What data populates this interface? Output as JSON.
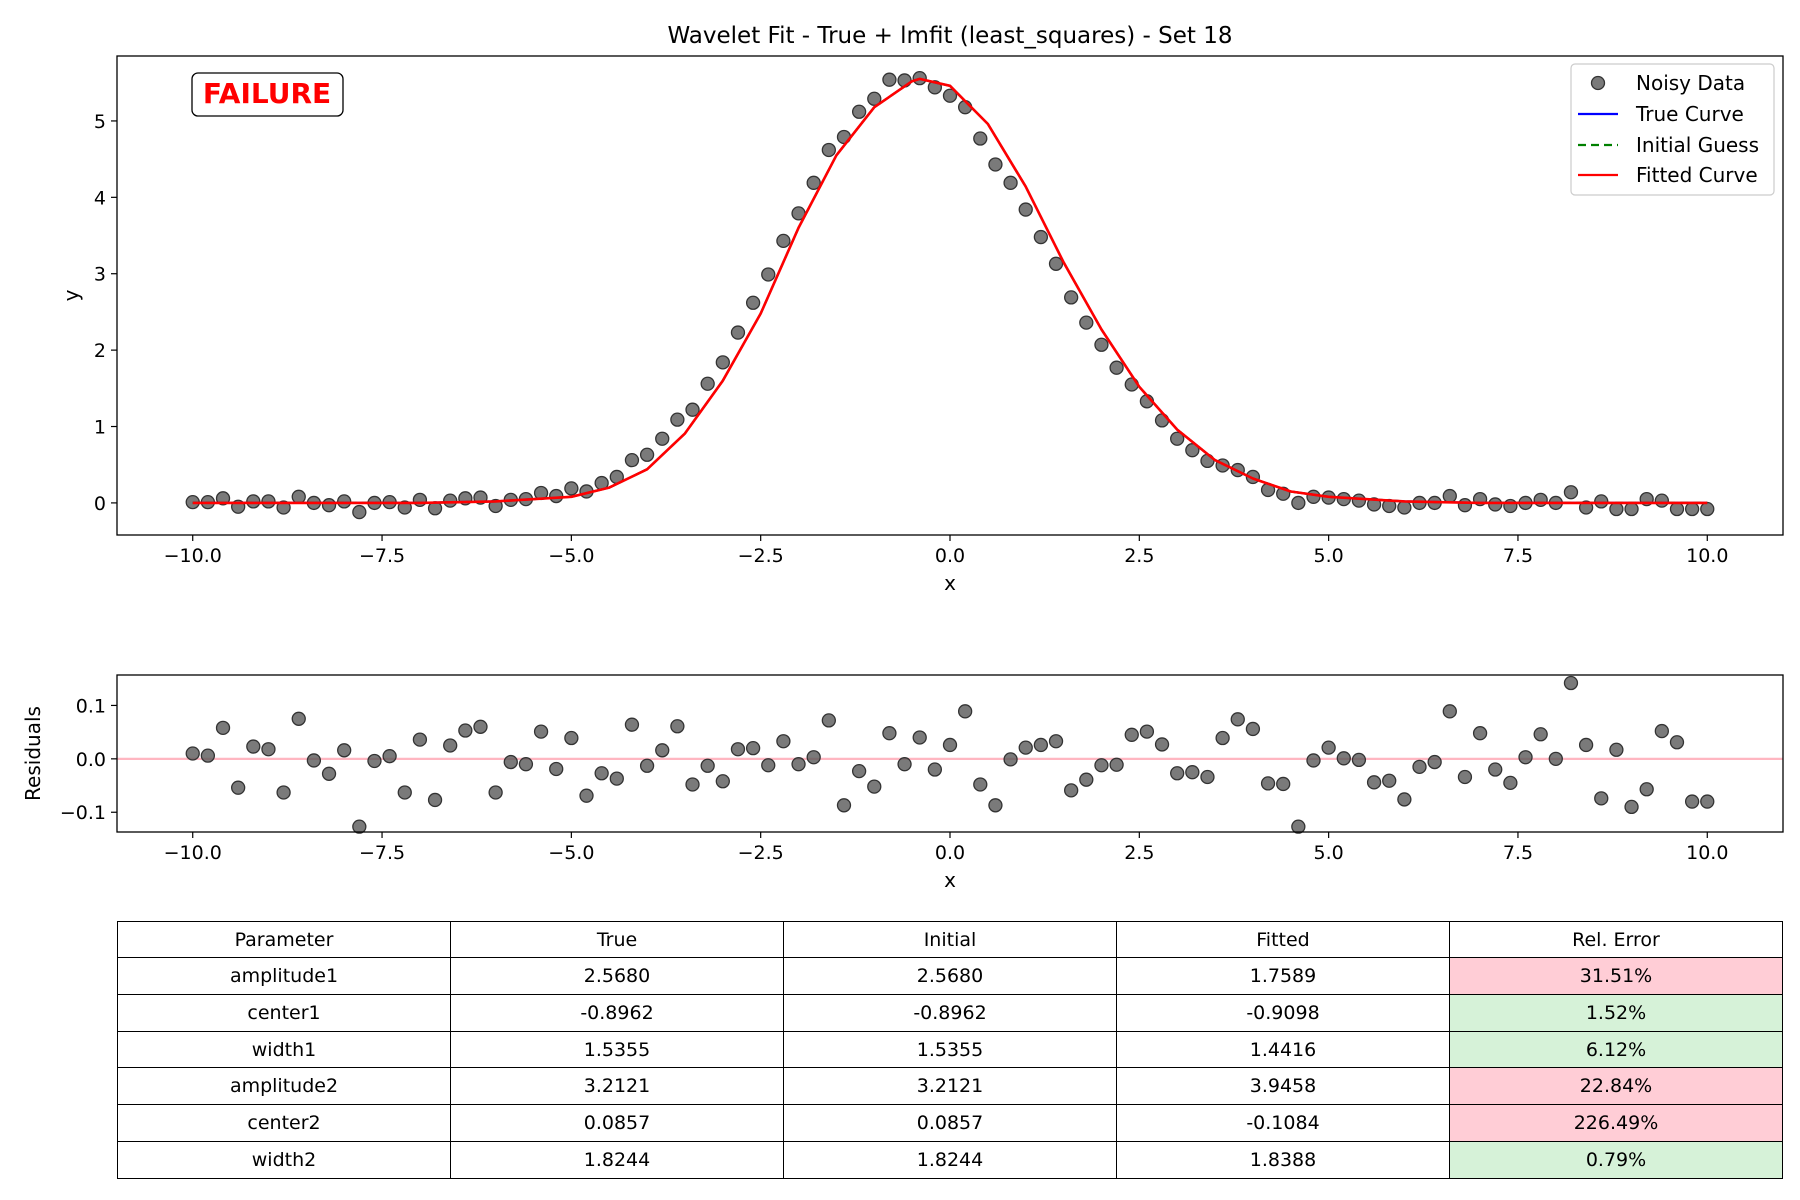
{
  "chart_data": [
    {
      "type": "scatter",
      "title": "Wavelet Fit - True + lmfit (least_squares) - Set 18",
      "xlabel": "x",
      "ylabel": "y",
      "xlim": [
        -11.0,
        11.0
      ],
      "ylim": [
        -0.42,
        5.85
      ],
      "xticks": [
        -10.0,
        -7.5,
        -5.0,
        -2.5,
        0.0,
        2.5,
        5.0,
        7.5,
        10.0
      ],
      "xtick_labels": [
        "−10.0",
        "−7.5",
        "−5.0",
        "−2.5",
        "0.0",
        "2.5",
        "5.0",
        "7.5",
        "10.0"
      ],
      "yticks": [
        0,
        1,
        2,
        3,
        4,
        5
      ],
      "ytick_labels": [
        "0",
        "1",
        "2",
        "3",
        "4",
        "5"
      ],
      "grid": false,
      "legend_placement": "top-right",
      "legend": [
        "Noisy Data",
        "True Curve",
        "Initial Guess",
        "Fitted Curve"
      ],
      "annotation": "FAILURE",
      "colors": {
        "noisy": "#555555",
        "true": "#0000ff",
        "initial": "#008000",
        "fitted": "#ff0000",
        "failure": "#ff0000"
      },
      "series": [
        {
          "name": "Noisy Data",
          "style": "markers",
          "x": [
            -10.0,
            -9.8,
            -9.6,
            -9.4,
            -9.2,
            -9.0,
            -8.8,
            -8.6,
            -8.4,
            -8.2,
            -8.0,
            -7.8,
            -7.6,
            -7.4,
            -7.2,
            -7.0,
            -6.8,
            -6.6,
            -6.4,
            -6.2,
            -6.0,
            -5.8,
            -5.6,
            -5.4,
            -5.2,
            -5.0,
            -4.8,
            -4.6,
            -4.4,
            -4.2,
            -4.0,
            -3.8,
            -3.6,
            -3.4,
            -3.2,
            -3.0,
            -2.8,
            -2.6,
            -2.4,
            -2.2,
            -2.0,
            -1.8,
            -1.6,
            -1.4,
            -1.2,
            -1.0,
            -0.8,
            -0.6,
            -0.4,
            -0.2,
            0.0,
            0.2,
            0.4,
            0.6,
            0.8,
            1.0,
            1.2,
            1.4,
            1.6,
            1.8,
            2.0,
            2.2,
            2.4,
            2.6,
            2.8,
            3.0,
            3.2,
            3.4,
            3.6,
            3.8,
            4.0,
            4.2,
            4.4,
            4.6,
            4.8,
            5.0,
            5.2,
            5.4,
            5.6,
            5.8,
            6.0,
            6.2,
            6.4,
            6.6,
            6.8,
            7.0,
            7.2,
            7.4,
            7.6,
            7.8,
            8.0,
            8.2,
            8.4,
            8.6,
            8.8,
            9.0,
            9.2,
            9.4,
            9.6,
            9.8,
            10.0
          ],
          "y": [
            0.01,
            0.01,
            0.06,
            -0.05,
            0.02,
            0.02,
            -0.06,
            0.08,
            0.0,
            -0.03,
            0.02,
            -0.12,
            0.0,
            0.01,
            -0.06,
            0.04,
            -0.07,
            0.03,
            0.06,
            0.07,
            -0.04,
            0.04,
            0.05,
            0.13,
            0.09,
            0.19,
            0.15,
            0.26,
            0.34,
            0.56,
            0.63,
            0.84,
            1.09,
            1.22,
            1.56,
            1.84,
            2.23,
            2.62,
            2.99,
            3.43,
            3.79,
            4.19,
            4.62,
            4.79,
            5.12,
            5.29,
            5.54,
            5.53,
            5.56,
            5.44,
            5.33,
            5.18,
            4.77,
            4.43,
            4.19,
            3.84,
            3.48,
            3.13,
            2.69,
            2.36,
            2.07,
            1.77,
            1.55,
            1.33,
            1.08,
            0.84,
            0.69,
            0.55,
            0.49,
            0.43,
            0.34,
            0.17,
            0.12,
            0.0,
            0.08,
            0.07,
            0.05,
            0.03,
            -0.02,
            -0.04,
            -0.06,
            0.0,
            0.0,
            0.09,
            -0.03,
            0.05,
            -0.02,
            -0.04,
            0.0,
            0.04,
            0.0,
            0.14,
            -0.06,
            0.02,
            -0.08,
            -0.08,
            0.05,
            0.03,
            -0.08,
            -0.08,
            -0.08
          ]
        },
        {
          "name": "True Curve",
          "style": "line",
          "x": [
            -10.0,
            -9.0,
            -8.0,
            -7.0,
            -6.0,
            -5.0,
            -4.5,
            -4.0,
            -3.5,
            -3.0,
            -2.5,
            -2.0,
            -1.5,
            -1.0,
            -0.5,
            -0.4,
            0.0,
            0.5,
            1.0,
            1.5,
            2.0,
            2.5,
            3.0,
            3.5,
            4.0,
            4.5,
            5.0,
            6.0,
            7.0,
            8.0,
            9.0,
            10.0
          ],
          "y": [
            0.0,
            0.0,
            0.0,
            0.0,
            0.02,
            0.08,
            0.2,
            0.44,
            0.91,
            1.6,
            2.48,
            3.6,
            4.55,
            5.18,
            5.52,
            5.55,
            5.46,
            4.96,
            4.14,
            3.15,
            2.27,
            1.52,
            0.96,
            0.56,
            0.32,
            0.15,
            0.08,
            0.02,
            0.0,
            0.0,
            0.0,
            0.0
          ]
        },
        {
          "name": "Initial Guess",
          "style": "dashed",
          "x": [
            -10.0,
            -9.0,
            -8.0,
            -7.0,
            -6.0,
            -5.0,
            -4.5,
            -4.0,
            -3.5,
            -3.0,
            -2.5,
            -2.0,
            -1.5,
            -1.0,
            -0.5,
            -0.4,
            0.0,
            0.5,
            1.0,
            1.5,
            2.0,
            2.5,
            3.0,
            3.5,
            4.0,
            4.5,
            5.0,
            6.0,
            7.0,
            8.0,
            9.0,
            10.0
          ],
          "y": [
            0.0,
            0.0,
            0.0,
            0.0,
            0.02,
            0.08,
            0.2,
            0.44,
            0.91,
            1.6,
            2.48,
            3.6,
            4.55,
            5.18,
            5.52,
            5.55,
            5.46,
            4.96,
            4.14,
            3.15,
            2.27,
            1.52,
            0.96,
            0.56,
            0.32,
            0.15,
            0.08,
            0.02,
            0.0,
            0.0,
            0.0,
            0.0
          ]
        },
        {
          "name": "Fitted Curve",
          "style": "line",
          "x": [
            -10.0,
            -9.0,
            -8.0,
            -7.0,
            -6.0,
            -5.0,
            -4.5,
            -4.0,
            -3.5,
            -3.0,
            -2.5,
            -2.0,
            -1.5,
            -1.0,
            -0.5,
            -0.4,
            0.0,
            0.5,
            1.0,
            1.5,
            2.0,
            2.5,
            3.0,
            3.5,
            4.0,
            4.5,
            5.0,
            6.0,
            7.0,
            8.0,
            9.0,
            10.0
          ],
          "y": [
            0.0,
            0.0,
            0.0,
            0.0,
            0.02,
            0.08,
            0.2,
            0.44,
            0.91,
            1.6,
            2.48,
            3.6,
            4.55,
            5.18,
            5.52,
            5.55,
            5.46,
            4.96,
            4.14,
            3.15,
            2.27,
            1.52,
            0.96,
            0.56,
            0.32,
            0.15,
            0.08,
            0.02,
            0.0,
            0.0,
            0.0,
            0.0
          ]
        }
      ]
    },
    {
      "type": "scatter",
      "xlabel": "x",
      "ylabel": "Residuals",
      "xlim": [
        -11.0,
        11.0
      ],
      "ylim": [
        -0.137,
        0.157
      ],
      "xticks": [
        -10.0,
        -7.5,
        -5.0,
        -2.5,
        0.0,
        2.5,
        5.0,
        7.5,
        10.0
      ],
      "xtick_labels": [
        "−10.0",
        "−7.5",
        "−5.0",
        "−2.5",
        "0.0",
        "2.5",
        "5.0",
        "7.5",
        "10.0"
      ],
      "yticks": [
        -0.1,
        0.0,
        0.1
      ],
      "ytick_labels": [
        "−0.1",
        "0.0",
        "0.1"
      ],
      "grid": false,
      "reference_line_y": 0.0,
      "colors": {
        "points": "#555555",
        "reference_line": "#ffb6c1"
      },
      "series": [
        {
          "name": "",
          "x": [
            -10.0,
            -9.8,
            -9.6,
            -9.4,
            -9.2,
            -9.0,
            -8.8,
            -8.6,
            -8.4,
            -8.2,
            -8.0,
            -7.8,
            -7.6,
            -7.4,
            -7.2,
            -7.0,
            -6.8,
            -6.6,
            -6.4,
            -6.2,
            -6.0,
            -5.8,
            -5.6,
            -5.4,
            -5.2,
            -5.0,
            -4.8,
            -4.6,
            -4.4,
            -4.2,
            -4.0,
            -3.8,
            -3.6,
            -3.4,
            -3.2,
            -3.0,
            -2.8,
            -2.6,
            -2.4,
            -2.2,
            -2.0,
            -1.8,
            -1.6,
            -1.4,
            -1.2,
            -1.0,
            -0.8,
            -0.6,
            -0.4,
            -0.2,
            0.0,
            0.2,
            0.4,
            0.6,
            0.8,
            1.0,
            1.2,
            1.4,
            1.6,
            1.8,
            2.0,
            2.2,
            2.4,
            2.6,
            2.8,
            3.0,
            3.2,
            3.4,
            3.6,
            3.8,
            4.0,
            4.2,
            4.4,
            4.6,
            4.8,
            5.0,
            5.2,
            5.4,
            5.6,
            5.8,
            6.0,
            6.2,
            6.4,
            6.6,
            6.8,
            7.0,
            7.2,
            7.4,
            7.6,
            7.8,
            8.0,
            8.2,
            8.4,
            8.6,
            8.8,
            9.0,
            9.2,
            9.4,
            9.6,
            9.8,
            10.0
          ],
          "y": [
            0.01,
            0.006,
            0.058,
            -0.054,
            0.023,
            0.018,
            -0.063,
            0.075,
            -0.003,
            -0.028,
            0.016,
            -0.127,
            -0.004,
            0.005,
            -0.063,
            0.036,
            -0.077,
            0.025,
            0.053,
            0.06,
            -0.063,
            -0.006,
            -0.01,
            0.051,
            -0.019,
            0.039,
            -0.069,
            -0.027,
            -0.037,
            0.064,
            -0.013,
            0.016,
            0.061,
            -0.048,
            -0.013,
            -0.042,
            0.018,
            0.02,
            -0.012,
            0.033,
            -0.01,
            0.003,
            0.072,
            -0.087,
            -0.023,
            -0.052,
            0.048,
            -0.01,
            0.04,
            -0.02,
            0.026,
            0.089,
            -0.048,
            -0.087,
            -0.001,
            0.021,
            0.026,
            0.033,
            -0.059,
            -0.039,
            -0.012,
            -0.011,
            0.045,
            0.051,
            0.027,
            -0.027,
            -0.025,
            -0.034,
            0.039,
            0.074,
            0.056,
            -0.046,
            -0.047,
            -0.127,
            -0.003,
            0.021,
            0.001,
            -0.002,
            -0.044,
            -0.041,
            -0.076,
            -0.015,
            -0.006,
            0.089,
            -0.034,
            0.048,
            -0.02,
            -0.045,
            0.003,
            0.046,
            0.0,
            0.142,
            0.026,
            -0.074,
            0.017,
            -0.09,
            -0.057,
            0.052,
            0.031,
            -0.08,
            -0.08
          ]
        }
      ]
    }
  ],
  "table": {
    "headers": [
      "Parameter",
      "True",
      "Initial",
      "Fitted",
      "Rel. Error"
    ],
    "rows": [
      [
        "amplitude1",
        "2.5680",
        "2.5680",
        "1.7589",
        "31.51%"
      ],
      [
        "center1",
        "-0.8962",
        "-0.8962",
        "-0.9098",
        "1.52%"
      ],
      [
        "width1",
        "1.5355",
        "1.5355",
        "1.4416",
        "6.12%"
      ],
      [
        "amplitude2",
        "3.2121",
        "3.2121",
        "3.9458",
        "22.84%"
      ],
      [
        "center2",
        "0.0857",
        "0.0857",
        "-0.1084",
        "226.49%"
      ],
      [
        "width2",
        "1.8244",
        "1.8244",
        "1.8388",
        "0.79%"
      ]
    ],
    "error_status": [
      "bad",
      "good",
      "good",
      "bad",
      "bad",
      "good"
    ],
    "colors": {
      "bad": "#ffcdd6",
      "good": "#d6f2d8"
    }
  }
}
